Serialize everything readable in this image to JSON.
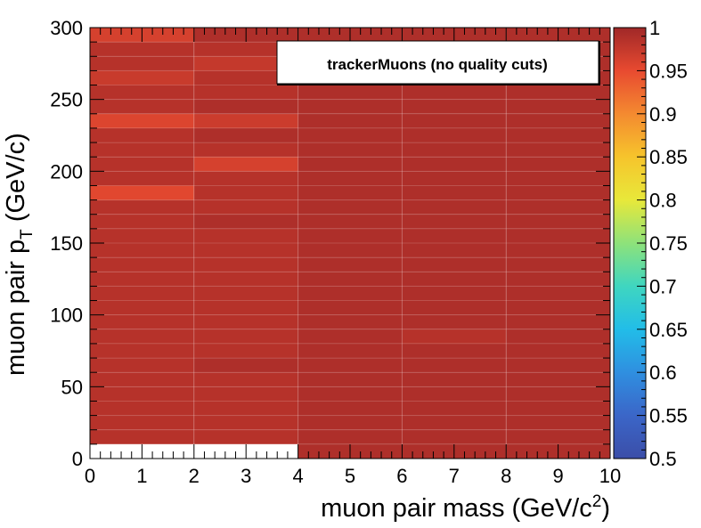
{
  "chart_data": {
    "type": "heatmap",
    "title": "",
    "legend_text": "trackerMuons (no quality cuts)",
    "xlabel": "muon pair mass (GeV/c",
    "xlabel_sup": "2",
    "xlabel_end": ")",
    "ylabel": "muon pair p",
    "ylabel_sub": "T",
    "ylabel_end": "  (GeV/c)",
    "xlim": [
      0,
      10
    ],
    "ylim": [
      0,
      300
    ],
    "zlim": [
      0.5,
      1
    ],
    "x_edges": [
      0,
      2,
      4,
      6,
      8,
      10
    ],
    "y_bin_width": 10,
    "x_ticks": [
      "0",
      "1",
      "2",
      "3",
      "4",
      "5",
      "6",
      "7",
      "8",
      "9",
      "10"
    ],
    "y_ticks": [
      "0",
      "50",
      "100",
      "150",
      "200",
      "250",
      "300"
    ],
    "z_ticks": [
      "0.5",
      "0.55",
      "0.6",
      "0.65",
      "0.7",
      "0.75",
      "0.8",
      "0.85",
      "0.9",
      "0.95",
      "1"
    ],
    "colorscale": [
      [
        0.0,
        "#3b4ea8"
      ],
      [
        0.1,
        "#3b66c8"
      ],
      [
        0.2,
        "#2f8fe0"
      ],
      [
        0.3,
        "#22bde8"
      ],
      [
        0.4,
        "#3fd6c0"
      ],
      [
        0.5,
        "#8ee27a"
      ],
      [
        0.6,
        "#e8e83a"
      ],
      [
        0.7,
        "#f6c42c"
      ],
      [
        0.8,
        "#f48a30"
      ],
      [
        0.9,
        "#e84a30"
      ],
      [
        1.0,
        "#a02828"
      ]
    ],
    "z_by_column": [
      [
        null,
        0.985,
        0.985,
        0.985,
        0.985,
        0.985,
        0.985,
        0.985,
        0.985,
        0.985,
        0.985,
        0.985,
        0.985,
        0.985,
        0.985,
        0.985,
        0.985,
        0.985,
        0.955,
        0.985,
        0.985,
        0.985,
        0.985,
        0.958,
        0.985,
        0.985,
        0.972,
        0.985,
        0.985,
        0.963
      ],
      [
        null,
        0.985,
        0.985,
        0.985,
        0.985,
        0.985,
        0.99,
        0.985,
        0.985,
        0.985,
        0.985,
        0.985,
        0.985,
        0.985,
        0.985,
        0.985,
        0.99,
        0.985,
        0.985,
        0.985,
        0.963,
        0.985,
        0.99,
        0.97,
        0.99,
        0.985,
        0.985,
        0.975,
        0.985,
        0.99
      ],
      [
        0.99,
        0.99,
        0.99,
        0.99,
        0.99,
        0.99,
        0.99,
        0.99,
        0.99,
        0.99,
        0.99,
        0.99,
        0.99,
        0.99,
        0.99,
        0.99,
        0.99,
        0.99,
        0.99,
        0.99,
        0.99,
        0.99,
        0.99,
        0.99,
        0.99,
        0.99,
        0.99,
        0.99,
        0.99,
        0.99
      ],
      [
        0.99,
        0.99,
        0.99,
        0.99,
        0.99,
        0.99,
        0.99,
        0.99,
        0.985,
        0.99,
        0.99,
        0.99,
        0.99,
        0.99,
        0.99,
        0.99,
        0.99,
        0.99,
        0.99,
        0.99,
        0.99,
        0.99,
        0.99,
        0.99,
        0.99,
        0.99,
        0.99,
        0.99,
        0.99,
        0.99
      ],
      [
        0.99,
        0.99,
        0.99,
        0.99,
        0.99,
        0.99,
        0.99,
        0.99,
        0.99,
        0.99,
        0.99,
        0.99,
        0.99,
        0.99,
        0.99,
        0.99,
        0.99,
        0.99,
        0.99,
        0.99,
        0.99,
        0.99,
        0.99,
        0.99,
        0.99,
        0.99,
        0.99,
        0.99,
        0.99,
        0.99
      ]
    ]
  }
}
